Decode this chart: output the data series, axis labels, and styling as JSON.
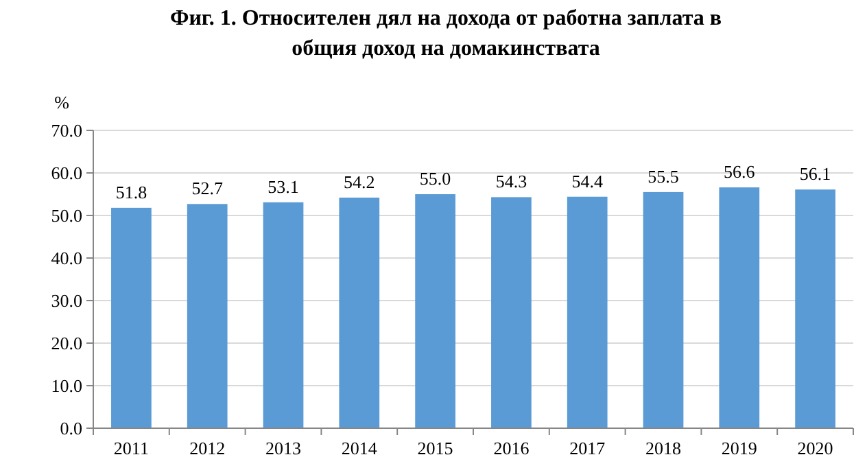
{
  "chart_data": {
    "type": "bar",
    "title": "Фиг. 1. Относителен дял на дохода от работна заплата в\nобщия доход на домакинствата",
    "ylabel": "%",
    "categories": [
      "2011",
      "2012",
      "2013",
      "2014",
      "2015",
      "2016",
      "2017",
      "2018",
      "2019",
      "2020"
    ],
    "values": [
      51.8,
      52.7,
      53.1,
      54.2,
      55.0,
      54.3,
      54.4,
      55.5,
      56.6,
      56.1
    ],
    "value_labels": [
      "51.8",
      "52.7",
      "53.1",
      "54.2",
      "55.0",
      "54.3",
      "54.4",
      "55.5",
      "56.6",
      "56.1"
    ],
    "color": "#5b9bd5",
    "ylim": [
      0,
      70
    ],
    "yticks": [
      {
        "value": 0,
        "label": "0.0"
      },
      {
        "value": 10,
        "label": "10.0"
      },
      {
        "value": 20,
        "label": "20.0"
      },
      {
        "value": 30,
        "label": "30.0"
      },
      {
        "value": 40,
        "label": "40.0"
      },
      {
        "value": 50,
        "label": "50.0"
      },
      {
        "value": 60,
        "label": "60.0"
      },
      {
        "value": 70,
        "label": "70.0"
      }
    ],
    "grid": "y"
  }
}
